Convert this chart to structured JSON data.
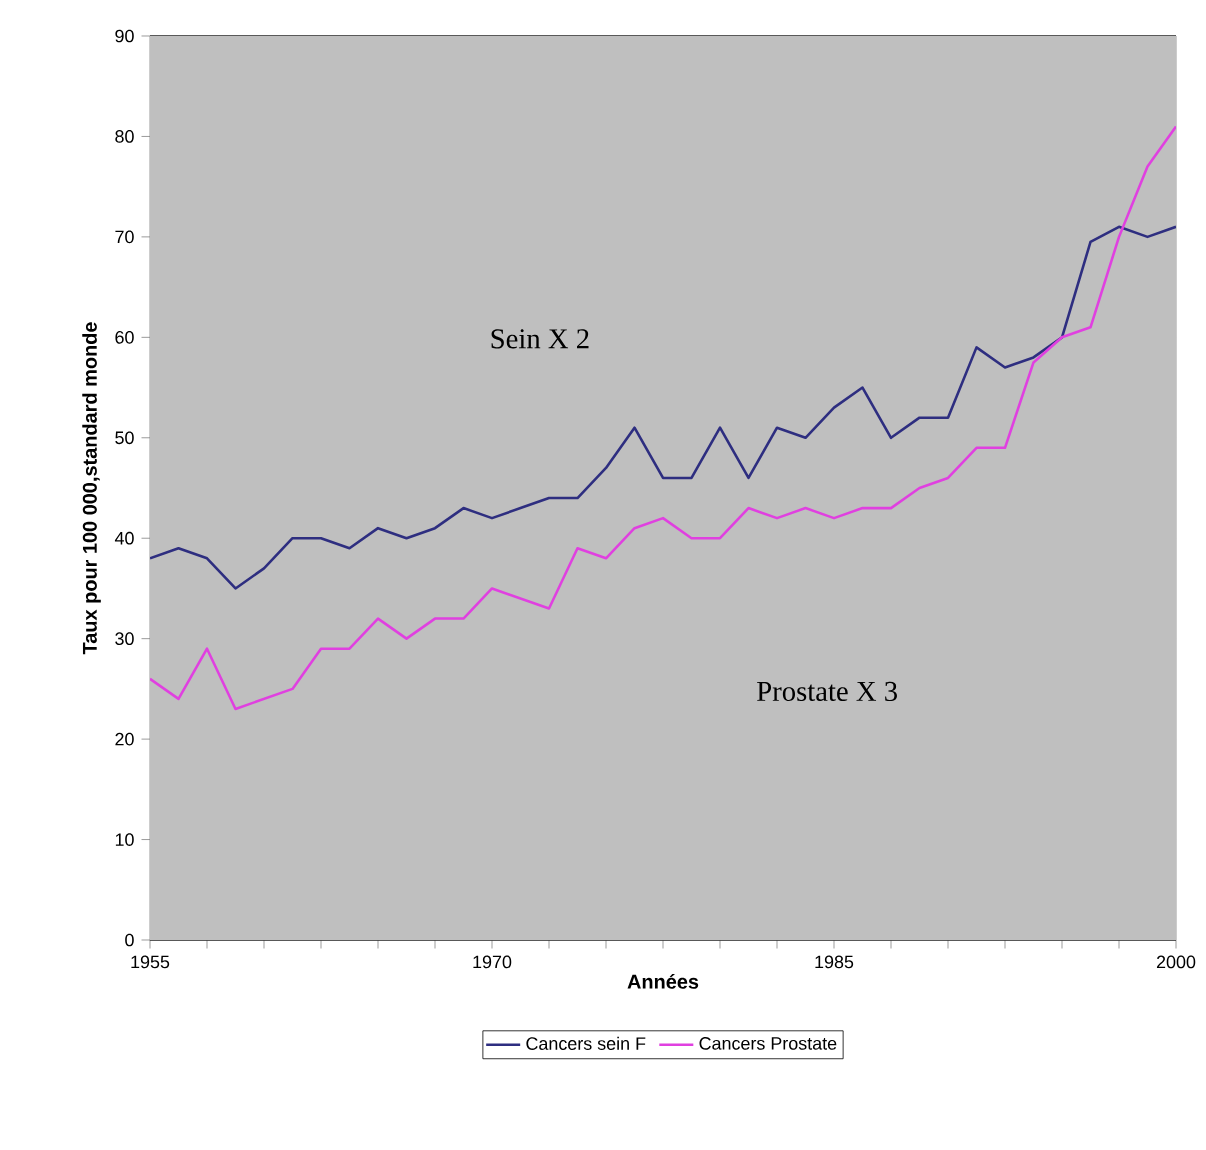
{
  "chart_data": {
    "type": "line",
    "xlabel": "Années",
    "ylabel": "Taux pour 100 000,standard monde",
    "x": [
      1955,
      1956.25,
      1957.5,
      1958.75,
      1960,
      1961.25,
      1962.5,
      1963.75,
      1965,
      1966.25,
      1967.5,
      1968.75,
      1970,
      1971.25,
      1972.5,
      1973.75,
      1975,
      1976.25,
      1977.5,
      1978.75,
      1980,
      1981.25,
      1982.5,
      1983.75,
      1985,
      1986.25,
      1987.5,
      1988.75,
      1990,
      1991.25,
      1992.5,
      1993.75,
      1995,
      1996.25,
      1997.5,
      1998.75,
      2000
    ],
    "series": [
      {
        "name": "Cancers sein F",
        "color": "#2e2e80",
        "values": [
          38,
          39,
          38,
          35,
          37,
          40,
          40,
          39,
          41,
          40,
          41,
          43,
          42,
          43,
          44,
          44,
          47,
          51,
          46,
          46,
          51,
          46,
          51,
          50,
          53,
          55,
          50,
          52,
          52,
          59,
          57,
          58,
          60,
          69.5,
          71,
          70,
          71
        ]
      },
      {
        "name": "Cancers Prostate",
        "color": "#e040e0",
        "values": [
          26,
          24,
          29,
          23,
          24,
          25,
          29,
          29,
          32,
          30,
          32,
          32,
          35,
          34,
          33,
          39,
          38,
          41,
          42,
          40,
          40,
          43,
          42,
          43,
          42,
          43,
          43,
          45,
          46,
          49,
          49,
          57.5,
          60,
          61,
          70,
          77,
          81
        ]
      }
    ],
    "xlim": [
      1955,
      2000
    ],
    "ylim": [
      0,
      90
    ],
    "xticks": [
      1955,
      {
        "value": 1957.5,
        "label": null
      },
      {
        "value": 1960,
        "label": null
      },
      {
        "value": 1962.5,
        "label": null
      },
      {
        "value": 1965,
        "label": null
      },
      {
        "value": 1967.5,
        "label": null
      },
      1970,
      {
        "value": 1972.5,
        "label": null
      },
      {
        "value": 1975,
        "label": null
      },
      {
        "value": 1977.5,
        "label": null
      },
      {
        "value": 1980,
        "label": null
      },
      {
        "value": 1982.5,
        "label": null
      },
      1985,
      {
        "value": 1987.5,
        "label": null
      },
      {
        "value": 1990,
        "label": null
      },
      {
        "value": 1992.5,
        "label": null
      },
      {
        "value": 1995,
        "label": null
      },
      {
        "value": 1997.5,
        "label": null
      },
      2000
    ],
    "yticks": [
      0,
      10,
      20,
      30,
      40,
      50,
      60,
      70,
      80,
      90
    ],
    "grid": "y",
    "legend": "bottom",
    "annotations": [
      "Sein X 2",
      "Prostate X 3"
    ]
  }
}
